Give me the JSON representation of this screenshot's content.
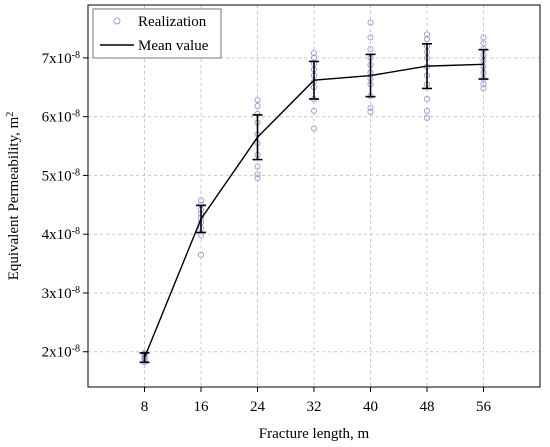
{
  "chart_data": {
    "type": "line",
    "xlabel": "Fracture length, m",
    "ylabel": "Equivalent Permeability, m",
    "ylabel_sup": "2",
    "x_ticks": [
      8,
      16,
      24,
      32,
      40,
      48,
      56
    ],
    "x_tick_labels": [
      "8",
      "16",
      "24",
      "32",
      "40",
      "48",
      "56"
    ],
    "xlim": [
      0,
      64
    ],
    "y_ticks": [
      2e-08,
      3e-08,
      4e-08,
      5e-08,
      6e-08,
      7e-08
    ],
    "y_tick_labels": [
      {
        "base": "2x10",
        "exp": "-8"
      },
      {
        "base": "3x10",
        "exp": "-8"
      },
      {
        "base": "4x10",
        "exp": "-8"
      },
      {
        "base": "5x10",
        "exp": "-8"
      },
      {
        "base": "6x10",
        "exp": "-8"
      },
      {
        "base": "7x10",
        "exp": "-8"
      }
    ],
    "ylim": [
      1.4e-08,
      7.9e-08
    ],
    "grid": true,
    "legend_position": "top-left",
    "series": [
      {
        "name": "Mean value",
        "kind": "line-errorbar",
        "color": "#000000",
        "x": [
          8,
          16,
          24,
          32,
          40,
          48,
          56
        ],
        "y": [
          1.9e-08,
          4.26e-08,
          5.65e-08,
          6.62e-08,
          6.7e-08,
          6.86e-08,
          6.89e-08
        ],
        "err": [
          8e-10,
          2.3e-09,
          3.8e-09,
          3.2e-09,
          3.6e-09,
          3.8e-09,
          2.5e-09
        ]
      },
      {
        "name": "Realization",
        "kind": "scatter",
        "color": "#9a9ae0",
        "points": [
          [
            8,
            1.82e-08
          ],
          [
            8,
            1.85e-08
          ],
          [
            8,
            1.88e-08
          ],
          [
            8,
            1.9e-08
          ],
          [
            8,
            1.93e-08
          ],
          [
            8,
            1.96e-08
          ],
          [
            8,
            1.98e-08
          ],
          [
            16,
            3.65e-08
          ],
          [
            16,
            3.98e-08
          ],
          [
            16,
            4.1e-08
          ],
          [
            16,
            4.2e-08
          ],
          [
            16,
            4.28e-08
          ],
          [
            16,
            4.35e-08
          ],
          [
            16,
            4.42e-08
          ],
          [
            16,
            4.5e-08
          ],
          [
            16,
            4.58e-08
          ],
          [
            24,
            4.95e-08
          ],
          [
            24,
            5.02e-08
          ],
          [
            24,
            5.15e-08
          ],
          [
            24,
            5.35e-08
          ],
          [
            24,
            5.55e-08
          ],
          [
            24,
            5.7e-08
          ],
          [
            24,
            5.9e-08
          ],
          [
            24,
            6.05e-08
          ],
          [
            24,
            6.18e-08
          ],
          [
            24,
            6.28e-08
          ],
          [
            32,
            5.8e-08
          ],
          [
            32,
            6.1e-08
          ],
          [
            32,
            6.3e-08
          ],
          [
            32,
            6.5e-08
          ],
          [
            32,
            6.6e-08
          ],
          [
            32,
            6.7e-08
          ],
          [
            32,
            6.8e-08
          ],
          [
            32,
            6.9e-08
          ],
          [
            32,
            7e-08
          ],
          [
            32,
            7.08e-08
          ],
          [
            40,
            6.08e-08
          ],
          [
            40,
            6.15e-08
          ],
          [
            40,
            6.35e-08
          ],
          [
            40,
            6.55e-08
          ],
          [
            40,
            6.65e-08
          ],
          [
            40,
            6.75e-08
          ],
          [
            40,
            6.88e-08
          ],
          [
            40,
            7e-08
          ],
          [
            40,
            7.15e-08
          ],
          [
            40,
            7.35e-08
          ],
          [
            40,
            7.6e-08
          ],
          [
            48,
            5.98e-08
          ],
          [
            48,
            6.1e-08
          ],
          [
            48,
            6.3e-08
          ],
          [
            48,
            6.55e-08
          ],
          [
            48,
            6.7e-08
          ],
          [
            48,
            6.85e-08
          ],
          [
            48,
            7e-08
          ],
          [
            48,
            7.1e-08
          ],
          [
            48,
            7.2e-08
          ],
          [
            48,
            7.32e-08
          ],
          [
            48,
            7.4e-08
          ],
          [
            56,
            6.48e-08
          ],
          [
            56,
            6.55e-08
          ],
          [
            56,
            6.65e-08
          ],
          [
            56,
            6.75e-08
          ],
          [
            56,
            6.85e-08
          ],
          [
            56,
            6.95e-08
          ],
          [
            56,
            7.05e-08
          ],
          [
            56,
            7.15e-08
          ],
          [
            56,
            7.25e-08
          ],
          [
            56,
            7.35e-08
          ]
        ]
      }
    ],
    "legend": [
      {
        "label": "Realization",
        "kind": "scatter"
      },
      {
        "label": "Mean value",
        "kind": "line"
      }
    ]
  }
}
